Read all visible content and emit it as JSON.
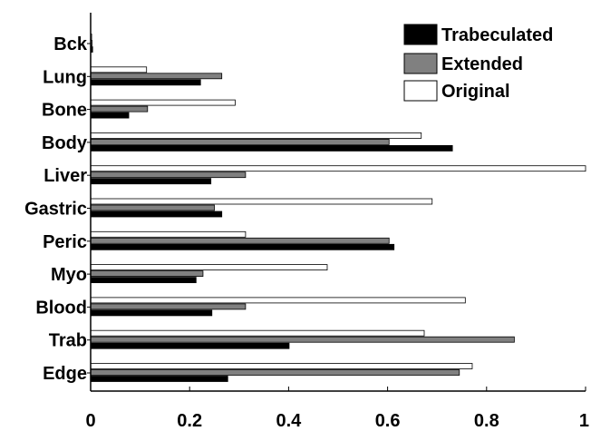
{
  "chart_data": {
    "type": "bar",
    "orientation": "horizontal",
    "categories": [
      "Bck",
      "Lung",
      "Bone",
      "Body",
      "Liver",
      "Gastric",
      "Peric",
      "Myo",
      "Blood",
      "Trab",
      "Edge"
    ],
    "series": [
      {
        "name": "Original",
        "color": "#ffffff",
        "values": [
          0.002,
          0.113,
          0.292,
          0.668,
          1.0,
          0.69,
          0.313,
          0.478,
          0.757,
          0.674,
          0.771
        ]
      },
      {
        "name": "Extended",
        "color": "#808080",
        "values": [
          0.003,
          0.265,
          0.115,
          0.603,
          0.313,
          0.25,
          0.603,
          0.227,
          0.313,
          0.856,
          0.745
        ]
      },
      {
        "name": "Trabeculated",
        "color": "#000000",
        "values": [
          0.004,
          0.222,
          0.077,
          0.731,
          0.243,
          0.265,
          0.613,
          0.213,
          0.245,
          0.401,
          0.277
        ]
      }
    ],
    "legend_order": [
      "Trabeculated",
      "Extended",
      "Original"
    ],
    "legend_position": "top-right",
    "xlim": [
      0,
      1
    ],
    "xticks": [
      "0",
      "0.2",
      "0.4",
      "0.6",
      "0.8",
      "1"
    ],
    "xtick_values": [
      0,
      0.2,
      0.4,
      0.6,
      0.8,
      1
    ],
    "grid": false
  }
}
